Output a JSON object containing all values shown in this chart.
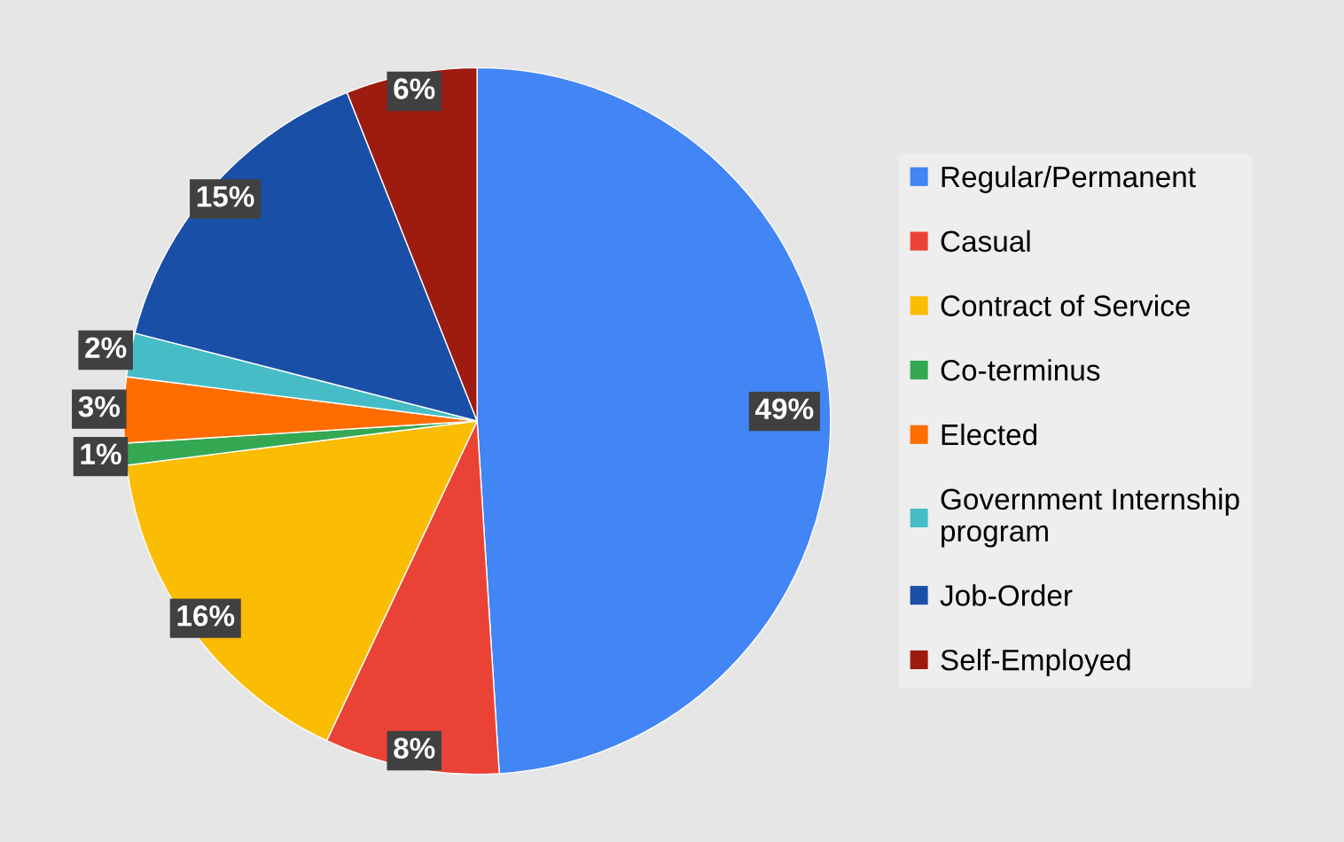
{
  "chart_data": {
    "type": "pie",
    "categories": [
      "Regular/Permanent",
      "Casual",
      "Contract of Service",
      "Co-terminus",
      "Elected",
      "Government Internship program",
      "Job-Order",
      "Self-Employed"
    ],
    "values": [
      49,
      8,
      16,
      1,
      3,
      2,
      15,
      6
    ],
    "colors": [
      "#4285f4",
      "#ea4335",
      "#fbbc04",
      "#34a853",
      "#ff6d01",
      "#46bdc6",
      "#1a4fa8",
      "#9e1b10"
    ],
    "value_labels": [
      "49%",
      "8%",
      "16%",
      "1%",
      "3%",
      "2%",
      "15%",
      "6%"
    ],
    "legend": "right"
  }
}
